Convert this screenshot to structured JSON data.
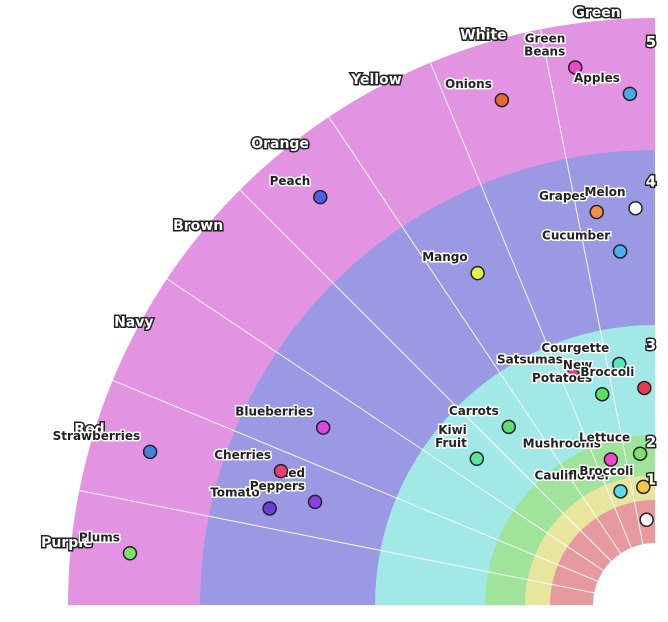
{
  "chart_data": {
    "type": "radial-scatter",
    "title": "",
    "sectors": [
      "Purple",
      "Red",
      "Navy",
      "Brown",
      "Orange",
      "Yellow",
      "White",
      "Green"
    ],
    "rings": [
      {
        "label": "",
        "color": "#e79a9e"
      },
      {
        "label": "1",
        "color": "#e8e59e"
      },
      {
        "label": "2",
        "color": "#a0e49b"
      },
      {
        "label": "3",
        "color": "#a2e8e6"
      },
      {
        "label": "4",
        "color": "#9b99e3"
      },
      {
        "label": "5",
        "color": "#e294e3"
      }
    ],
    "points": [
      {
        "name": "Plums",
        "sector": "Purple",
        "ring": 5,
        "color": "#7ee06a"
      },
      {
        "name": "Strawberries",
        "sector": "Red",
        "ring": 5,
        "color": "#4a7fe0"
      },
      {
        "name": "Tomato",
        "sector": "Red",
        "ring": 4,
        "color": "#6a3fd8"
      },
      {
        "name": "Red Peppers",
        "sector": "Red",
        "ring": 4,
        "color": "#8e3ee0"
      },
      {
        "name": "Cherries",
        "sector": "Red",
        "ring": 4,
        "color": "#e84070"
      },
      {
        "name": "Blueberries",
        "sector": "Navy",
        "ring": 4,
        "color": "#d548e0"
      },
      {
        "name": "Peach",
        "sector": "Orange",
        "ring": 5,
        "color": "#4a60e0"
      },
      {
        "name": "Mango",
        "sector": "Yellow",
        "ring": 4,
        "color": "#e6f04a"
      },
      {
        "name": "Onions",
        "sector": "White",
        "ring": 5,
        "color": "#e8663a"
      },
      {
        "name": "Grapes",
        "sector": "Green",
        "ring": 4,
        "color": "#f0904a"
      },
      {
        "name": "Green Beans",
        "sector": "Green",
        "ring": 5,
        "color": "#e84ac8"
      },
      {
        "name": "Apples",
        "sector": "Green",
        "ring": 5,
        "color": "#4aa8e8"
      },
      {
        "name": "Cucumber",
        "sector": "Green",
        "ring": 4,
        "color": "#4ab0f0"
      },
      {
        "name": "Melon",
        "sector": "Green",
        "ring": 4,
        "color": "#ffffff"
      },
      {
        "name": "Satsumas",
        "sector": "White",
        "ring": 3,
        "color": "#e83a90"
      },
      {
        "name": "Kiwi Fruit",
        "sector": "Brown",
        "ring": 3,
        "color": "#5ae8a0"
      },
      {
        "name": "New Potatoes",
        "sector": "White",
        "ring": 3,
        "color": "#5ae05a"
      },
      {
        "name": "Carrots",
        "sector": "Orange",
        "ring": 3,
        "color": "#5ae070"
      },
      {
        "name": "Mushrooms",
        "sector": "White",
        "ring": 2,
        "color": "#e84ac8"
      },
      {
        "name": "Courgette",
        "sector": "Green",
        "ring": 3,
        "color": "#5ae8b8"
      },
      {
        "name": "Broccoli",
        "sector": "Green",
        "ring": 3,
        "color": "#e83a50"
      },
      {
        "name": "Lettuce",
        "sector": "Green",
        "ring": 2,
        "color": "#7ee06a"
      },
      {
        "name": "Cauliflower",
        "sector": "White",
        "ring": 1,
        "color": "#5ad8e8"
      },
      {
        "name": "Broccoli",
        "sector": "Green",
        "ring": 1,
        "color": "#f0c84a"
      },
      {
        "name": "",
        "sector": "Green",
        "ring": 0,
        "color": "#ffffff"
      }
    ]
  }
}
